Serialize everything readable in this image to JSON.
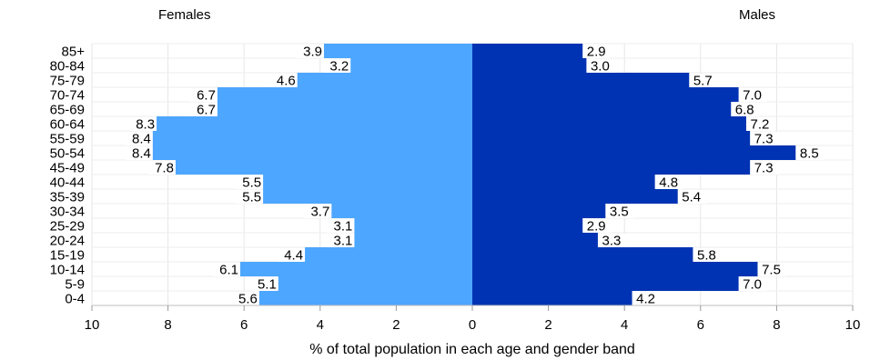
{
  "chart_data": {
    "type": "bar",
    "orientation": "horizontal",
    "style": "population-pyramid",
    "groups": [
      "Females",
      "Males"
    ],
    "categories": [
      "85+",
      "80-84",
      "75-79",
      "70-74",
      "65-69",
      "60-64",
      "55-59",
      "50-54",
      "45-49",
      "40-44",
      "35-39",
      "30-34",
      "25-29",
      "20-24",
      "15-19",
      "10-14",
      "5-9",
      "0-4"
    ],
    "series": [
      {
        "name": "Females",
        "side": "left",
        "color": "#4da6ff",
        "values": [
          3.9,
          3.2,
          4.6,
          6.7,
          6.7,
          8.3,
          8.4,
          8.4,
          7.8,
          5.5,
          5.5,
          3.7,
          3.1,
          3.1,
          4.4,
          6.1,
          5.1,
          5.6
        ]
      },
      {
        "name": "Males",
        "side": "right",
        "color": "#0033b3",
        "values": [
          2.9,
          3.0,
          5.7,
          7.0,
          6.8,
          7.2,
          7.3,
          8.5,
          7.3,
          4.8,
          5.4,
          3.5,
          2.9,
          3.3,
          5.8,
          7.5,
          7.0,
          4.2
        ]
      }
    ],
    "xlabel": "% of total population in each age and gender band",
    "xlim": [
      -10,
      10
    ],
    "xticks": [
      -10,
      -8,
      -6,
      -4,
      -2,
      0,
      2,
      4,
      6,
      8,
      10
    ],
    "xtick_labels": [
      "10",
      "8",
      "6",
      "4",
      "2",
      "0",
      "2",
      "4",
      "6",
      "8",
      "10"
    ],
    "grid": "vertical",
    "data_labels": true
  }
}
